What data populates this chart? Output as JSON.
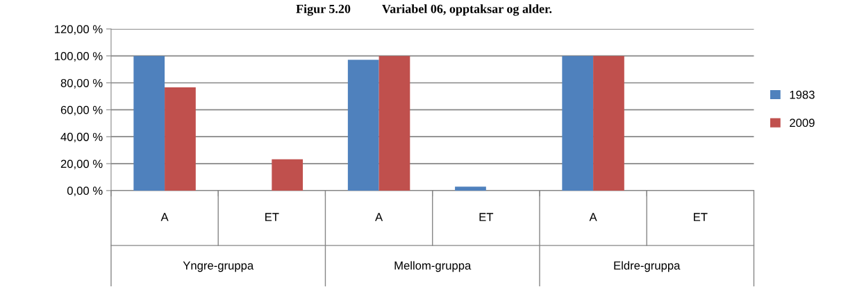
{
  "chart_data": {
    "type": "bar",
    "title": "Figur 5.20          Variabel 06, opptaksar og alder.",
    "categories": [
      "A",
      "ET",
      "A",
      "ET",
      "A",
      "ET"
    ],
    "series": [
      {
        "name": "1983",
        "color": "#4f81bd",
        "values": [
          100,
          0,
          97.1,
          2.9,
          100,
          0
        ]
      },
      {
        "name": "2009",
        "color": "#c0504d",
        "values": [
          76.7,
          23.3,
          100,
          0,
          100,
          0
        ]
      }
    ],
    "ylim": [
      0,
      120
    ],
    "yticks": [
      {
        "value": 0,
        "label": "0,00 %"
      },
      {
        "value": 20,
        "label": "20,00 %"
      },
      {
        "value": 40,
        "label": "40,00 %"
      },
      {
        "value": 60,
        "label": "60,00 %"
      },
      {
        "value": 80,
        "label": "80,00 %"
      },
      {
        "value": 100,
        "label": "100,00 %"
      },
      {
        "value": 120,
        "label": "120,00 %"
      }
    ],
    "grid": "y",
    "legend": "right",
    "annotations": [
      "Yngre-gruppa",
      "Mellom-gruppa",
      "Eldre-gruppa"
    ]
  }
}
